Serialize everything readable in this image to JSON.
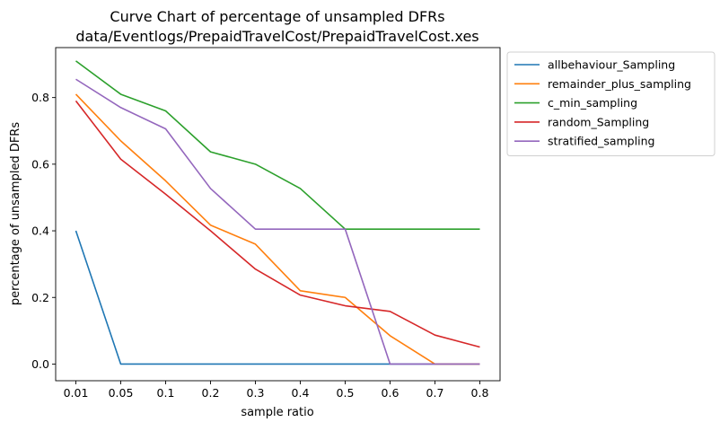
{
  "chart_data": {
    "type": "line",
    "title": "Curve Chart of percentage of unsampled DFRs",
    "subtitle": "data/Eventlogs/PrepaidTravelCost/PrepaidTravelCost.xes",
    "xlabel": "sample ratio",
    "ylabel": "percentage of unsampled DFRs",
    "categories": [
      "0.01",
      "0.05",
      "0.1",
      "0.2",
      "0.3",
      "0.4",
      "0.5",
      "0.6",
      "0.7",
      "0.8"
    ],
    "y_ticks": [
      "0.0",
      "0.2",
      "0.4",
      "0.6",
      "0.8"
    ],
    "ylim": [
      -0.05,
      0.95
    ],
    "grid": false,
    "legend_position": "outside-top-right",
    "series": [
      {
        "name": "allbehaviour_Sampling",
        "color": "#1f77b4",
        "values": [
          0.4,
          0,
          0,
          0,
          0,
          0,
          0,
          0,
          0,
          0
        ]
      },
      {
        "name": "remainder_plus_sampling",
        "color": "#ff7f0e",
        "values": [
          0.81,
          0.67,
          0.55,
          0.417,
          0.36,
          0.22,
          0.2,
          0.085,
          0,
          0
        ]
      },
      {
        "name": "c_min_sampling",
        "color": "#2ca02c",
        "values": [
          0.91,
          0.81,
          0.76,
          0.637,
          0.6,
          0.527,
          0.405,
          0.405,
          0.405,
          0.405
        ]
      },
      {
        "name": "random_Sampling",
        "color": "#d62728",
        "values": [
          0.79,
          0.615,
          0.51,
          0.4,
          0.285,
          0.207,
          0.175,
          0.158,
          0.087,
          0.051
        ]
      },
      {
        "name": "stratified_sampling",
        "color": "#9467bd",
        "values": [
          0.855,
          0.77,
          0.706,
          0.527,
          0.405,
          0.405,
          0.405,
          0,
          0,
          0
        ]
      }
    ]
  }
}
